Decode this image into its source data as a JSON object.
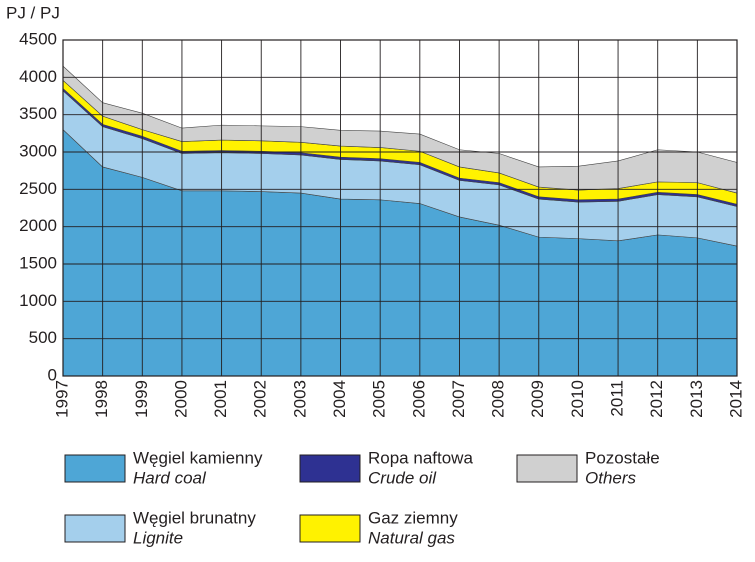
{
  "chart_data": {
    "type": "stacked-area",
    "y_label": "PJ / PJ",
    "categories": [
      "1997",
      "1998",
      "1999",
      "2000",
      "2001",
      "2002",
      "2003",
      "2004",
      "2005",
      "2006",
      "2007",
      "2008",
      "2009",
      "2010",
      "2011",
      "2012",
      "2013",
      "2014"
    ],
    "series": [
      {
        "name": "Węgiel kamienny",
        "name_en": "Hard coal",
        "color": "#4ea6d6",
        "values": [
          3300,
          2800,
          2660,
          2480,
          2480,
          2470,
          2450,
          2370,
          2360,
          2310,
          2130,
          2020,
          1860,
          1840,
          1810,
          1890,
          1850,
          1740
        ]
      },
      {
        "name": "Węgiel brunatny",
        "name_en": "Lignite",
        "color": "#a4cfec",
        "values": [
          520,
          540,
          520,
          500,
          510,
          510,
          510,
          530,
          520,
          520,
          490,
          540,
          510,
          490,
          530,
          540,
          550,
          530
        ]
      },
      {
        "name": "Ropa naftowa",
        "name_en": "Crude oil",
        "color": "#2e3192",
        "values": [
          30,
          30,
          30,
          30,
          30,
          30,
          30,
          30,
          30,
          30,
          30,
          30,
          30,
          30,
          30,
          30,
          30,
          30
        ]
      },
      {
        "name": "Gaz ziemny",
        "name_en": "Natural gas",
        "color": "#fff200",
        "values": [
          110,
          110,
          90,
          130,
          140,
          140,
          140,
          150,
          150,
          150,
          150,
          130,
          130,
          130,
          140,
          140,
          160,
          150
        ]
      },
      {
        "name": "Pozostałe",
        "name_en": "Others",
        "color": "#d0d0d0",
        "values": [
          190,
          180,
          220,
          180,
          200,
          200,
          210,
          210,
          220,
          230,
          230,
          260,
          270,
          320,
          370,
          430,
          410,
          410
        ]
      }
    ],
    "ylim": [
      0,
      4500
    ],
    "yticks": [
      0,
      500,
      1000,
      1500,
      2000,
      2500,
      3000,
      3500,
      4000,
      4500
    ],
    "grid": true
  }
}
